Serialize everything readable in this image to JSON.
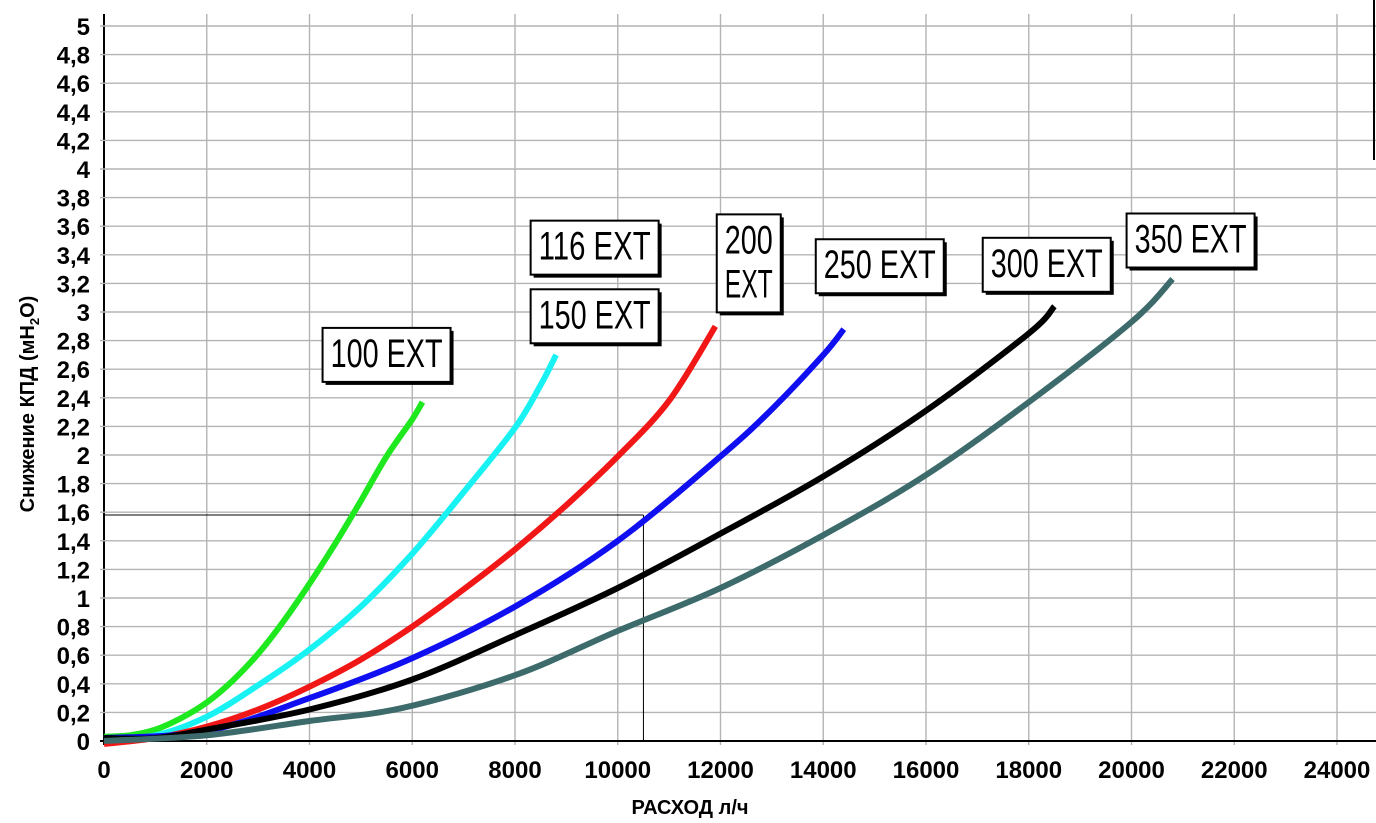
{
  "chart_data": {
    "type": "line",
    "title": "",
    "xlabel": "РАСХОД л/ч",
    "ylabel": "Снижение КПД (мН₂О)",
    "ylabel_parts": {
      "main": "Снижение КПД (мН",
      "sub": "2",
      "tail": "О)"
    },
    "xlim": [
      0,
      24000
    ],
    "ylim": [
      0,
      5
    ],
    "x_ticks": [
      {
        "value": 0,
        "label": "0"
      },
      {
        "value": 2000,
        "label": "2000"
      },
      {
        "value": 4000,
        "label": "4000"
      },
      {
        "value": 6000,
        "label": "6000"
      },
      {
        "value": 8000,
        "label": "8000"
      },
      {
        "value": 10000,
        "label": "10000"
      },
      {
        "value": 12000,
        "label": "12000"
      },
      {
        "value": 14000,
        "label": "14000"
      },
      {
        "value": 16000,
        "label": "16000"
      },
      {
        "value": 18000,
        "label": "18000"
      },
      {
        "value": 20000,
        "label": "20000"
      },
      {
        "value": 22000,
        "label": "22000"
      },
      {
        "value": 24000,
        "label": "24000"
      }
    ],
    "y_ticks": [
      {
        "value": 0,
        "label": "0"
      },
      {
        "value": 0.2,
        "label": "0,2"
      },
      {
        "value": 0.4,
        "label": "0,4"
      },
      {
        "value": 0.6,
        "label": "0,6"
      },
      {
        "value": 0.8,
        "label": "0,8"
      },
      {
        "value": 1,
        "label": "1"
      },
      {
        "value": 1.2,
        "label": "1,2"
      },
      {
        "value": 1.4,
        "label": "1,4"
      },
      {
        "value": 1.6,
        "label": "1,6"
      },
      {
        "value": 1.8,
        "label": "1,8"
      },
      {
        "value": 2,
        "label": "2"
      },
      {
        "value": 2.2,
        "label": "2,2"
      },
      {
        "value": 2.4,
        "label": "2,4"
      },
      {
        "value": 2.6,
        "label": "2,6"
      },
      {
        "value": 2.8,
        "label": "2,8"
      },
      {
        "value": 3,
        "label": "3"
      },
      {
        "value": 3.2,
        "label": "3,2"
      },
      {
        "value": 3.4,
        "label": "3,4"
      },
      {
        "value": 3.6,
        "label": "3,6"
      },
      {
        "value": 3.8,
        "label": "3,8"
      },
      {
        "value": 4,
        "label": "4"
      },
      {
        "value": 4.2,
        "label": "4,2"
      },
      {
        "value": 4.4,
        "label": "4,4"
      },
      {
        "value": 4.6,
        "label": "4,6"
      },
      {
        "value": 4.8,
        "label": "4,8"
      },
      {
        "value": 5,
        "label": "5"
      }
    ],
    "grid": true,
    "reference_lines": {
      "x": 10500,
      "y": 1.58
    },
    "series": [
      {
        "name": "100 EXT",
        "color": "#1ee81e",
        "points": [
          [
            0,
            0.03
          ],
          [
            500,
            0.04
          ],
          [
            1000,
            0.08
          ],
          [
            1500,
            0.16
          ],
          [
            2000,
            0.27
          ],
          [
            2500,
            0.42
          ],
          [
            3000,
            0.61
          ],
          [
            3500,
            0.84
          ],
          [
            4000,
            1.1
          ],
          [
            4500,
            1.38
          ],
          [
            5000,
            1.68
          ],
          [
            5500,
            1.99
          ],
          [
            6000,
            2.25
          ],
          [
            6200,
            2.37
          ]
        ]
      },
      {
        "name": "116 EXT",
        "color": "#19f2f2",
        "points": [
          [
            0,
            0.02
          ],
          [
            1000,
            0.04
          ],
          [
            2000,
            0.17
          ],
          [
            3000,
            0.39
          ],
          [
            4000,
            0.64
          ],
          [
            5000,
            0.94
          ],
          [
            6000,
            1.31
          ],
          [
            7000,
            1.74
          ],
          [
            8000,
            2.19
          ],
          [
            8500,
            2.49
          ],
          [
            8800,
            2.7
          ]
        ]
      },
      {
        "name": "200 EXT",
        "color": "#f21717",
        "points": [
          [
            0,
            -0.02
          ],
          [
            1000,
            0.02
          ],
          [
            2000,
            0.1
          ],
          [
            3000,
            0.22
          ],
          [
            4000,
            0.38
          ],
          [
            5000,
            0.57
          ],
          [
            6000,
            0.8
          ],
          [
            7000,
            1.06
          ],
          [
            8000,
            1.34
          ],
          [
            9000,
            1.65
          ],
          [
            10000,
            1.99
          ],
          [
            11000,
            2.38
          ],
          [
            11900,
            2.9
          ]
        ]
      },
      {
        "name": "250 EXT",
        "color": "#0f0ff2",
        "points": [
          [
            0,
            0.02
          ],
          [
            2000,
            0.07
          ],
          [
            4000,
            0.3
          ],
          [
            6000,
            0.58
          ],
          [
            8000,
            0.94
          ],
          [
            10000,
            1.4
          ],
          [
            12000,
            1.99
          ],
          [
            13000,
            2.32
          ],
          [
            14000,
            2.7
          ],
          [
            14400,
            2.88
          ]
        ]
      },
      {
        "name": "300 EXT",
        "color": "#000000",
        "points": [
          [
            0,
            0.02
          ],
          [
            1000,
            0.02
          ],
          [
            2000,
            0.08
          ],
          [
            4000,
            0.22
          ],
          [
            6000,
            0.43
          ],
          [
            8000,
            0.74
          ],
          [
            10000,
            1.07
          ],
          [
            12000,
            1.45
          ],
          [
            14000,
            1.85
          ],
          [
            16000,
            2.31
          ],
          [
            18000,
            2.85
          ],
          [
            18500,
            3.04
          ]
        ]
      },
      {
        "name": "350 EXT",
        "color": "#3d6b6b",
        "points": [
          [
            0,
            0.0
          ],
          [
            2000,
            0.04
          ],
          [
            4000,
            0.14
          ],
          [
            5800,
            0.23
          ],
          [
            8000,
            0.46
          ],
          [
            10000,
            0.77
          ],
          [
            12000,
            1.07
          ],
          [
            14000,
            1.44
          ],
          [
            16000,
            1.86
          ],
          [
            18000,
            2.37
          ],
          [
            20000,
            2.93
          ],
          [
            20800,
            3.23
          ]
        ]
      }
    ],
    "series_labels": [
      {
        "series": "100 EXT",
        "lines": [
          "100 EXT"
        ],
        "x": 5500,
        "y": 2.7
      },
      {
        "series": "116 EXT",
        "lines": [
          "116 EXT"
        ],
        "x": 9550,
        "y": 3.45
      },
      {
        "series": "150 EXT",
        "lines": [
          "150 EXT"
        ],
        "x": 9550,
        "y": 2.97
      },
      {
        "series": "200 EXT",
        "lines": [
          "200",
          "EXT"
        ],
        "x": 12550,
        "y": 3.34
      },
      {
        "series": "250 EXT",
        "lines": [
          "250 EXT"
        ],
        "x": 15100,
        "y": 3.32
      },
      {
        "series": "300 EXT",
        "lines": [
          "300 EXT"
        ],
        "x": 18350,
        "y": 3.33
      },
      {
        "series": "350 EXT",
        "lines": [
          "350 EXT"
        ],
        "x": 21150,
        "y": 3.5
      }
    ]
  }
}
